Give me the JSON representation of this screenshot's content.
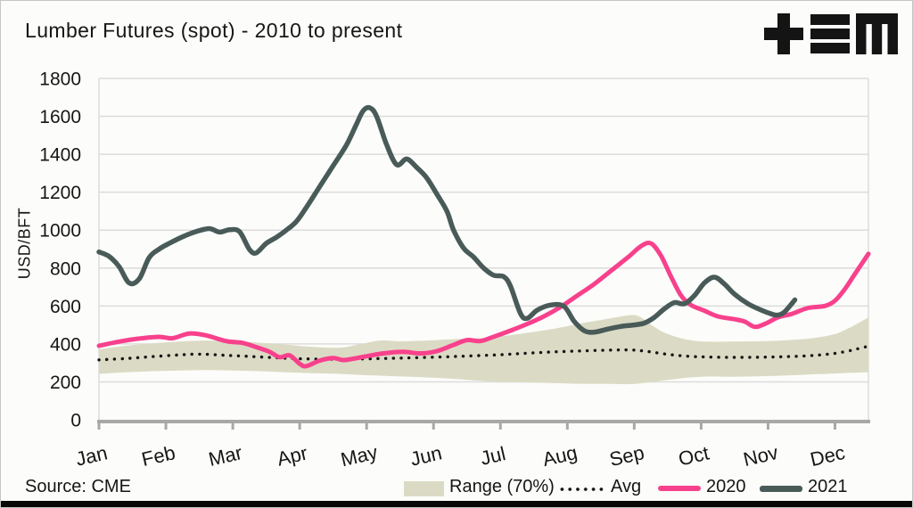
{
  "header": {
    "title": "Lumber Futures (spot) - 2010 to present",
    "logo_icon": "plus-bars-m-logo",
    "logo_color": "#141414"
  },
  "footer": {
    "source": "Source: CME"
  },
  "colors": {
    "background": "#fcfcfa",
    "text": "#161616",
    "gridline": "#dcdcdc",
    "axis": "#a8a8a8",
    "band": "#dbdbc5",
    "avg": "#151515",
    "line_2020": "#f8418c",
    "line_2021": "#495b58",
    "bottom_bar": "#080808"
  },
  "chart_data": {
    "type": "line",
    "title": "Lumber Futures (spot) - 2010 to present",
    "xlabel": "",
    "ylabel": "USD/BFT",
    "ylim": [
      0,
      1800
    ],
    "y_tick_step": 200,
    "y_tick_labels": [
      "0",
      "200",
      "400",
      "600",
      "800",
      "1000",
      "1200",
      "1400",
      "1600",
      "1800"
    ],
    "x_tick_labels": [
      "Jan",
      "Feb",
      "Mar",
      "Apr",
      "May",
      "Jun",
      "Jul",
      "Aug",
      "Sep",
      "Oct",
      "Nov",
      "Dec"
    ],
    "xlim_months": [
      0,
      11.5
    ],
    "grid": "horizontal",
    "legend_position": "bottom-right",
    "series": [
      {
        "name": "Range (70%)",
        "type": "band",
        "color": "#dbdbc5",
        "top": [
          [
            0,
            372
          ],
          [
            0.4,
            390
          ],
          [
            0.8,
            403
          ],
          [
            1.2,
            412
          ],
          [
            1.6,
            418
          ],
          [
            2.0,
            414
          ],
          [
            2.4,
            406
          ],
          [
            2.8,
            396
          ],
          [
            3.2,
            384
          ],
          [
            3.6,
            380
          ],
          [
            3.9,
            398
          ],
          [
            4.2,
            418
          ],
          [
            4.5,
            414
          ],
          [
            4.9,
            418
          ],
          [
            5.3,
            425
          ],
          [
            5.7,
            430
          ],
          [
            6.0,
            440
          ],
          [
            6.4,
            458
          ],
          [
            6.8,
            480
          ],
          [
            7.2,
            508
          ],
          [
            7.6,
            532
          ],
          [
            7.95,
            552
          ],
          [
            8.1,
            540
          ],
          [
            8.3,
            490
          ],
          [
            8.5,
            452
          ],
          [
            8.8,
            422
          ],
          [
            9.1,
            412
          ],
          [
            9.5,
            413
          ],
          [
            9.9,
            414
          ],
          [
            10.3,
            420
          ],
          [
            10.7,
            432
          ],
          [
            11.0,
            452
          ],
          [
            11.2,
            482
          ],
          [
            11.35,
            510
          ],
          [
            11.5,
            540
          ]
        ],
        "bottom": [
          [
            0,
            242
          ],
          [
            0.4,
            250
          ],
          [
            0.8,
            256
          ],
          [
            1.2,
            260
          ],
          [
            1.6,
            262
          ],
          [
            2.0,
            260
          ],
          [
            2.4,
            256
          ],
          [
            2.8,
            250
          ],
          [
            3.2,
            246
          ],
          [
            3.6,
            242
          ],
          [
            4.0,
            235
          ],
          [
            4.4,
            230
          ],
          [
            4.8,
            225
          ],
          [
            5.2,
            218
          ],
          [
            5.6,
            208
          ],
          [
            6.0,
            200
          ],
          [
            6.4,
            196
          ],
          [
            6.8,
            193
          ],
          [
            7.2,
            190
          ],
          [
            7.6,
            189
          ],
          [
            7.95,
            188
          ],
          [
            8.2,
            196
          ],
          [
            8.5,
            210
          ],
          [
            8.8,
            222
          ],
          [
            9.1,
            228
          ],
          [
            9.5,
            227
          ],
          [
            9.9,
            230
          ],
          [
            10.3,
            234
          ],
          [
            10.7,
            240
          ],
          [
            11.0,
            244
          ],
          [
            11.2,
            247
          ],
          [
            11.5,
            250
          ]
        ]
      },
      {
        "name": "Avg",
        "type": "dotted-line",
        "color": "#151515",
        "points": [
          [
            0,
            316
          ],
          [
            0.4,
            323
          ],
          [
            0.8,
            333
          ],
          [
            1.2,
            342
          ],
          [
            1.5,
            346
          ],
          [
            1.9,
            340
          ],
          [
            2.3,
            333
          ],
          [
            2.7,
            326
          ],
          [
            3.1,
            321
          ],
          [
            3.6,
            319
          ],
          [
            4.1,
            322
          ],
          [
            4.6,
            326
          ],
          [
            5.1,
            331
          ],
          [
            5.5,
            336
          ],
          [
            6.0,
            343
          ],
          [
            6.4,
            351
          ],
          [
            6.8,
            358
          ],
          [
            7.2,
            363
          ],
          [
            7.6,
            367
          ],
          [
            7.95,
            368
          ],
          [
            8.2,
            360
          ],
          [
            8.5,
            345
          ],
          [
            8.8,
            335
          ],
          [
            9.1,
            331
          ],
          [
            9.5,
            329
          ],
          [
            9.9,
            330
          ],
          [
            10.3,
            333
          ],
          [
            10.7,
            340
          ],
          [
            11.0,
            350
          ],
          [
            11.2,
            363
          ],
          [
            11.35,
            375
          ],
          [
            11.5,
            388
          ]
        ]
      },
      {
        "name": "2020",
        "type": "line",
        "color": "#f8418c",
        "points": [
          [
            0,
            390
          ],
          [
            0.3,
            412
          ],
          [
            0.6,
            428
          ],
          [
            0.9,
            437
          ],
          [
            1.1,
            430
          ],
          [
            1.35,
            455
          ],
          [
            1.6,
            445
          ],
          [
            1.9,
            415
          ],
          [
            2.15,
            405
          ],
          [
            2.35,
            383
          ],
          [
            2.55,
            358
          ],
          [
            2.7,
            330
          ],
          [
            2.85,
            340
          ],
          [
            3.0,
            295
          ],
          [
            3.1,
            283
          ],
          [
            3.3,
            312
          ],
          [
            3.5,
            325
          ],
          [
            3.65,
            315
          ],
          [
            3.8,
            322
          ],
          [
            4.0,
            335
          ],
          [
            4.25,
            350
          ],
          [
            4.55,
            358
          ],
          [
            4.8,
            350
          ],
          [
            5.05,
            362
          ],
          [
            5.3,
            395
          ],
          [
            5.5,
            420
          ],
          [
            5.7,
            415
          ],
          [
            5.9,
            438
          ],
          [
            6.15,
            470
          ],
          [
            6.4,
            505
          ],
          [
            6.65,
            545
          ],
          [
            6.9,
            595
          ],
          [
            7.15,
            655
          ],
          [
            7.4,
            715
          ],
          [
            7.65,
            785
          ],
          [
            7.9,
            855
          ],
          [
            8.1,
            915
          ],
          [
            8.25,
            930
          ],
          [
            8.4,
            865
          ],
          [
            8.55,
            755
          ],
          [
            8.7,
            655
          ],
          [
            8.85,
            605
          ],
          [
            9.05,
            575
          ],
          [
            9.25,
            545
          ],
          [
            9.5,
            530
          ],
          [
            9.65,
            518
          ],
          [
            9.8,
            490
          ],
          [
            9.95,
            505
          ],
          [
            10.15,
            540
          ],
          [
            10.35,
            558
          ],
          [
            10.6,
            590
          ],
          [
            10.85,
            600
          ],
          [
            11.0,
            628
          ],
          [
            11.15,
            690
          ],
          [
            11.3,
            770
          ],
          [
            11.5,
            875
          ]
        ]
      },
      {
        "name": "2021",
        "type": "line",
        "color": "#495b58",
        "points": [
          [
            0,
            885
          ],
          [
            0.15,
            862
          ],
          [
            0.3,
            808
          ],
          [
            0.45,
            722
          ],
          [
            0.6,
            742
          ],
          [
            0.75,
            855
          ],
          [
            0.9,
            900
          ],
          [
            1.05,
            930
          ],
          [
            1.25,
            965
          ],
          [
            1.45,
            992
          ],
          [
            1.65,
            1008
          ],
          [
            1.8,
            990
          ],
          [
            1.95,
            1002
          ],
          [
            2.1,
            992
          ],
          [
            2.25,
            898
          ],
          [
            2.35,
            880
          ],
          [
            2.5,
            930
          ],
          [
            2.65,
            962
          ],
          [
            2.8,
            1000
          ],
          [
            2.95,
            1045
          ],
          [
            3.1,
            1120
          ],
          [
            3.3,
            1230
          ],
          [
            3.5,
            1340
          ],
          [
            3.7,
            1450
          ],
          [
            3.85,
            1560
          ],
          [
            3.95,
            1630
          ],
          [
            4.05,
            1645
          ],
          [
            4.15,
            1600
          ],
          [
            4.3,
            1450
          ],
          [
            4.45,
            1345
          ],
          [
            4.6,
            1375
          ],
          [
            4.75,
            1330
          ],
          [
            4.9,
            1275
          ],
          [
            5.05,
            1190
          ],
          [
            5.2,
            1100
          ],
          [
            5.3,
            1000
          ],
          [
            5.45,
            905
          ],
          [
            5.6,
            858
          ],
          [
            5.75,
            800
          ],
          [
            5.9,
            762
          ],
          [
            6.05,
            755
          ],
          [
            6.15,
            705
          ],
          [
            6.3,
            560
          ],
          [
            6.4,
            535
          ],
          [
            6.55,
            578
          ],
          [
            6.75,
            605
          ],
          [
            6.95,
            598
          ],
          [
            7.1,
            520
          ],
          [
            7.25,
            470
          ],
          [
            7.4,
            462
          ],
          [
            7.6,
            478
          ],
          [
            7.8,
            492
          ],
          [
            8.0,
            500
          ],
          [
            8.15,
            510
          ],
          [
            8.3,
            540
          ],
          [
            8.45,
            585
          ],
          [
            8.6,
            618
          ],
          [
            8.75,
            612
          ],
          [
            8.9,
            655
          ],
          [
            9.05,
            722
          ],
          [
            9.2,
            752
          ],
          [
            9.35,
            715
          ],
          [
            9.5,
            662
          ],
          [
            9.7,
            612
          ],
          [
            9.9,
            578
          ],
          [
            10.05,
            558
          ],
          [
            10.15,
            552
          ],
          [
            10.25,
            570
          ],
          [
            10.4,
            632
          ]
        ]
      }
    ]
  }
}
